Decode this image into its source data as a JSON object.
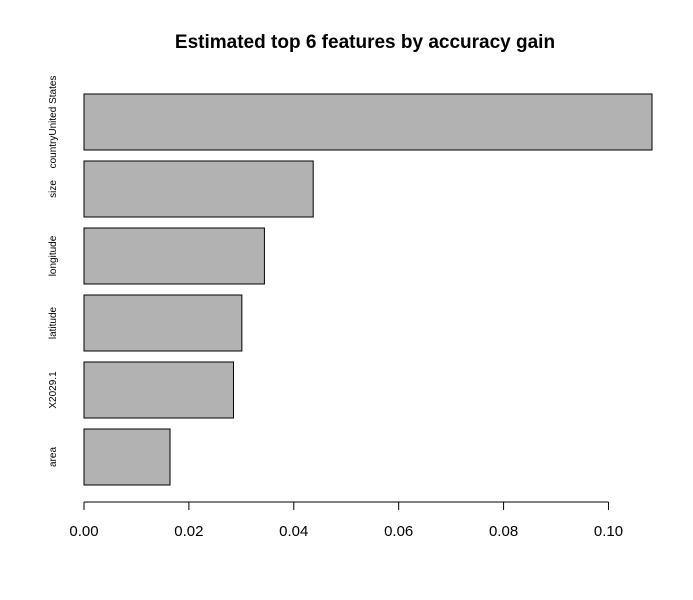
{
  "chart_data": {
    "type": "bar",
    "orientation": "horizontal",
    "title": "Estimated top 6 features by accuracy gain",
    "categories": [
      "countryUnited States",
      "size",
      "longitude",
      "latitude",
      "X2029.1",
      "area"
    ],
    "values": [
      0.1083,
      0.0437,
      0.0344,
      0.0301,
      0.0285,
      0.0164
    ],
    "xlim": [
      0,
      0.1083
    ],
    "xticks": [
      0.0,
      0.02,
      0.04,
      0.06,
      0.08,
      0.1
    ],
    "xtick_labels": [
      "0.00",
      "0.02",
      "0.04",
      "0.06",
      "0.08",
      "0.10"
    ],
    "bar_color": "#b2b2b2",
    "grid": false
  }
}
